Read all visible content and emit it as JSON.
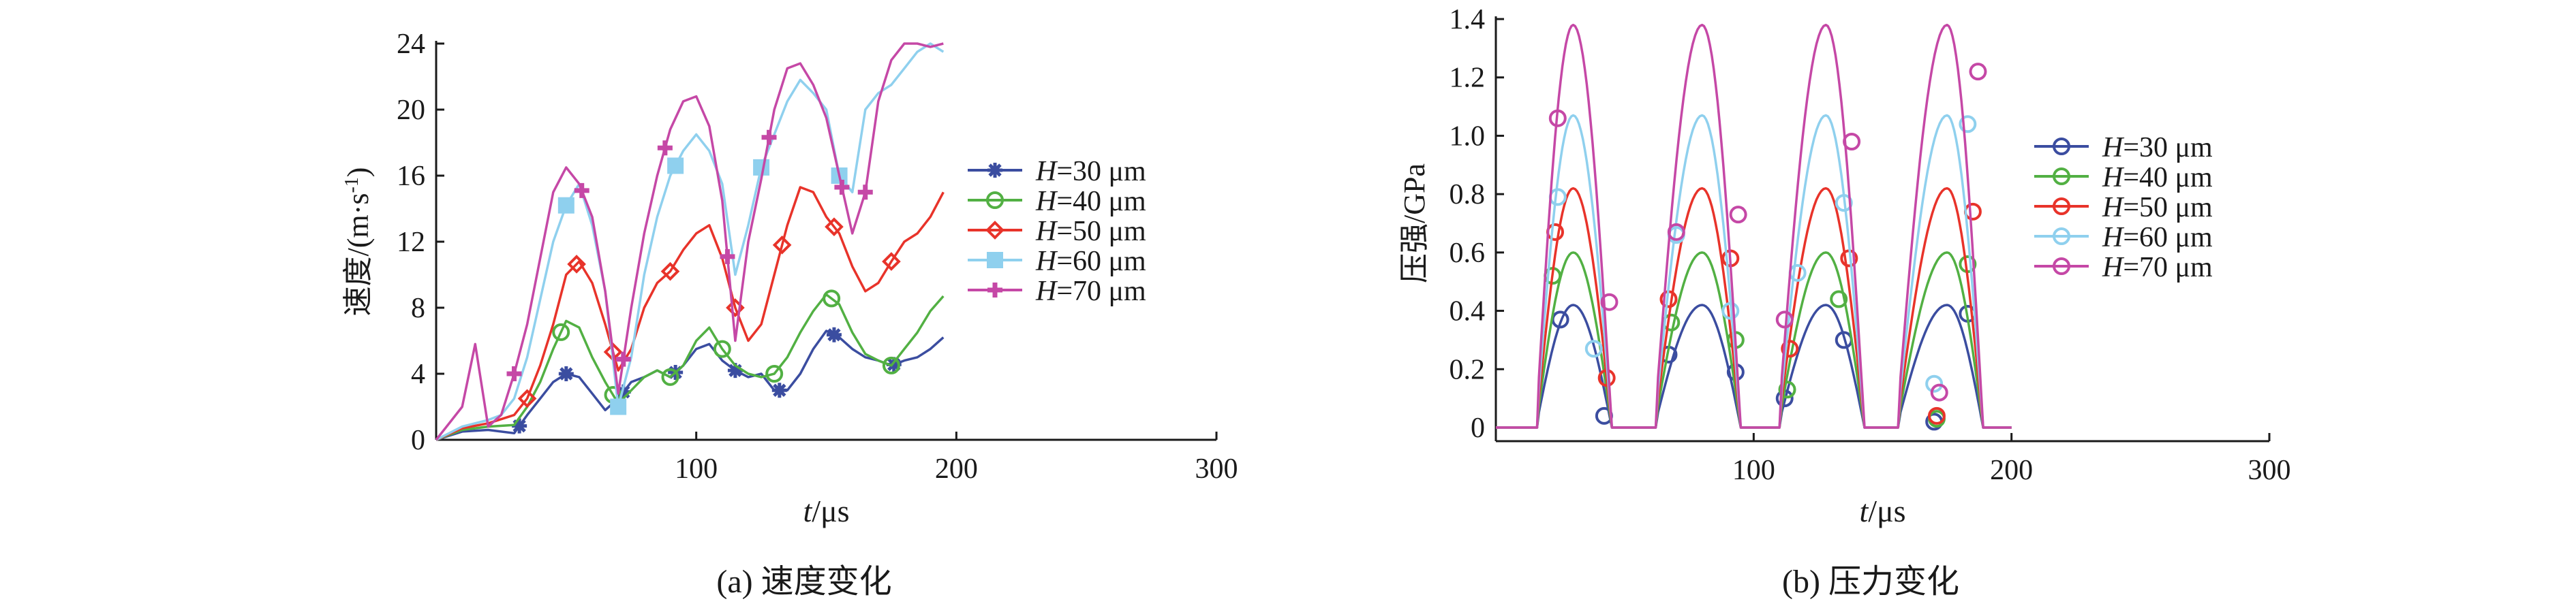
{
  "colors": {
    "H30": "#3b4da0",
    "H40": "#52b043",
    "H50": "#e8332a",
    "H60": "#8fd0ee",
    "H70": "#c548a6",
    "axis": "#1a1a1a"
  },
  "chart_data": [
    {
      "id": "a",
      "type": "line",
      "caption": "(a) 速度变化",
      "ylabel": "速度/(m·s",
      "ylabel_sup": "-1",
      "ylabel_tail": ")",
      "xlabel_var": "t",
      "xlabel_unit": "/μs",
      "xlim": [
        0,
        300
      ],
      "ylim": [
        0,
        24
      ],
      "xticks": [
        100,
        200,
        300
      ],
      "yticks": [
        0,
        4,
        8,
        12,
        16,
        20,
        24
      ],
      "series": [
        {
          "name_var": "H",
          "name_rest": "=30 μm",
          "color_key": "H30",
          "marker": "asterisk",
          "x": [
            0,
            10,
            20,
            30,
            35,
            40,
            45,
            50,
            55,
            60,
            65,
            70,
            75,
            80,
            85,
            90,
            95,
            100,
            105,
            110,
            115,
            120,
            125,
            130,
            135,
            140,
            145,
            150,
            155,
            160,
            165,
            170,
            175,
            180,
            185,
            190,
            195
          ],
          "y": [
            0,
            0.5,
            0.6,
            0.4,
            1.5,
            2.5,
            3.5,
            4.0,
            3.8,
            2.8,
            1.8,
            2.5,
            3.5,
            3.8,
            4.2,
            3.8,
            4.5,
            5.5,
            5.8,
            4.8,
            4.2,
            3.8,
            4.0,
            3.0,
            3.0,
            4.0,
            5.5,
            6.6,
            6.2,
            5.5,
            5.0,
            4.8,
            4.5,
            4.8,
            5.0,
            5.5,
            6.2
          ],
          "markers_x": [
            32,
            50,
            72,
            92,
            115,
            132,
            153,
            176
          ]
        },
        {
          "name_var": "H",
          "name_rest": "=40 μm",
          "color_key": "H40",
          "marker": "circle",
          "x": [
            0,
            10,
            20,
            30,
            35,
            40,
            45,
            50,
            55,
            60,
            65,
            70,
            75,
            80,
            85,
            90,
            95,
            100,
            105,
            110,
            115,
            120,
            125,
            130,
            135,
            140,
            145,
            150,
            155,
            160,
            165,
            170,
            175,
            180,
            185,
            190,
            195
          ],
          "y": [
            0,
            0.6,
            0.8,
            0.9,
            2.0,
            3.5,
            5.5,
            7.2,
            6.8,
            5.0,
            3.5,
            2.2,
            3.0,
            3.8,
            4.2,
            3.8,
            4.5,
            6.0,
            6.8,
            5.5,
            4.5,
            4.0,
            3.8,
            4.0,
            5.0,
            6.5,
            7.8,
            8.8,
            8.2,
            6.5,
            5.2,
            4.8,
            4.5,
            5.5,
            6.5,
            7.8,
            8.7
          ],
          "markers_x": [
            48,
            68,
            90,
            110,
            130,
            152,
            175
          ]
        },
        {
          "name_var": "H",
          "name_rest": "=50 μm",
          "color_key": "H50",
          "marker": "diamond",
          "x": [
            0,
            10,
            20,
            30,
            35,
            40,
            45,
            50,
            55,
            60,
            65,
            70,
            75,
            80,
            85,
            90,
            95,
            100,
            105,
            110,
            115,
            120,
            125,
            130,
            135,
            140,
            145,
            150,
            155,
            160,
            165,
            170,
            175,
            180,
            185,
            190,
            195
          ],
          "y": [
            0,
            0.7,
            1.0,
            1.5,
            2.5,
            4.5,
            7.0,
            10.0,
            10.8,
            9.5,
            7.0,
            4.2,
            5.5,
            8.0,
            9.5,
            10.2,
            11.5,
            12.5,
            13.0,
            11.0,
            8.0,
            6.0,
            7.0,
            10.0,
            13.0,
            15.3,
            15.0,
            13.5,
            12.5,
            10.5,
            9.0,
            9.5,
            10.8,
            12.0,
            12.5,
            13.5,
            15.0
          ],
          "markers_x": [
            35,
            54,
            68,
            90,
            115,
            133,
            153,
            175
          ]
        },
        {
          "name_var": "H",
          "name_rest": "=60 μm",
          "color_key": "H60",
          "marker": "square",
          "x": [
            0,
            10,
            20,
            25,
            30,
            35,
            40,
            45,
            50,
            55,
            60,
            65,
            70,
            75,
            80,
            85,
            90,
            95,
            100,
            105,
            110,
            115,
            120,
            125,
            130,
            135,
            140,
            145,
            150,
            155,
            160,
            165,
            170,
            175,
            180,
            185,
            190,
            195
          ],
          "y": [
            0,
            0.8,
            1.2,
            1.5,
            2.5,
            5.0,
            8.5,
            12.0,
            14.2,
            15.5,
            13.0,
            9.0,
            2.0,
            5.0,
            10.0,
            13.5,
            16.0,
            17.5,
            18.5,
            17.5,
            15.5,
            10.0,
            13.0,
            16.5,
            18.5,
            20.5,
            21.8,
            21.0,
            20.0,
            16.0,
            15.0,
            20.0,
            21.0,
            21.5,
            22.5,
            23.5,
            24.0,
            23.5
          ],
          "markers_x": [
            50,
            70,
            92,
            125,
            155
          ]
        },
        {
          "name_var": "H",
          "name_rest": "=70 μm",
          "color_key": "H70",
          "marker": "plus",
          "x": [
            0,
            5,
            10,
            15,
            20,
            25,
            30,
            35,
            40,
            45,
            50,
            55,
            60,
            65,
            70,
            75,
            80,
            85,
            90,
            95,
            100,
            105,
            110,
            115,
            120,
            125,
            130,
            135,
            140,
            145,
            150,
            155,
            160,
            165,
            170,
            175,
            180,
            185,
            190,
            195
          ],
          "y": [
            0,
            1.0,
            2.0,
            5.8,
            0.8,
            1.5,
            4.0,
            7.0,
            11.0,
            15.0,
            16.5,
            15.5,
            13.5,
            9.0,
            2.8,
            8.0,
            12.5,
            16.0,
            18.8,
            20.5,
            20.8,
            19.0,
            14.5,
            6.0,
            12.0,
            15.8,
            20.0,
            22.5,
            22.8,
            21.5,
            19.5,
            16.0,
            12.5,
            15.0,
            20.5,
            23.0,
            24.0,
            24.0,
            23.8,
            24.0
          ],
          "markers_x": [
            30,
            56,
            72,
            88,
            112,
            128,
            156,
            165
          ]
        }
      ]
    },
    {
      "id": "b",
      "type": "line",
      "caption": "(b) 压力变化",
      "ylabel": "压强/GPa",
      "xlabel_var": "t",
      "xlabel_unit": "/μs",
      "xlim": [
        0,
        300
      ],
      "ylim": [
        0,
        1.4
      ],
      "xticks": [
        100,
        200,
        300
      ],
      "yticks": [
        0,
        0.2,
        0.4,
        0.6,
        0.8,
        1.0,
        1.2,
        1.4
      ],
      "yticklabels": [
        "0",
        "0.2",
        "0.4",
        "0.6",
        "0.8",
        "1.0",
        "1.2",
        "1.4"
      ],
      "pulses": [
        [
          16,
          45,
          30
        ],
        [
          62,
          95,
          80
        ],
        [
          110,
          143,
          128
        ],
        [
          156,
          189,
          175
        ]
      ],
      "series": [
        {
          "name_var": "H",
          "name_rest": "=30 μm",
          "color_key": "H30",
          "marker": "circle",
          "peak": 0.42,
          "markers": [
            [
              25,
              0.37
            ],
            [
              42,
              0.04
            ],
            [
              67,
              0.25
            ],
            [
              93,
              0.19
            ],
            [
              112,
              0.1
            ],
            [
              135,
              0.3
            ],
            [
              170,
              0.02
            ],
            [
              183,
              0.39
            ]
          ]
        },
        {
          "name_var": "H",
          "name_rest": "=40 μm",
          "color_key": "H40",
          "marker": "circle",
          "peak": 0.6,
          "markers": [
            [
              22,
              0.52
            ],
            [
              68,
              0.36
            ],
            [
              93,
              0.3
            ],
            [
              113,
              0.13
            ],
            [
              133,
              0.44
            ],
            [
              171,
              0.03
            ],
            [
              183,
              0.56
            ]
          ]
        },
        {
          "name_var": "H",
          "name_rest": "=50 μm",
          "color_key": "H50",
          "marker": "circle",
          "peak": 0.82,
          "markers": [
            [
              23,
              0.67
            ],
            [
              43,
              0.17
            ],
            [
              67,
              0.44
            ],
            [
              91,
              0.58
            ],
            [
              114,
              0.27
            ],
            [
              137,
              0.58
            ],
            [
              171,
              0.04
            ],
            [
              185,
              0.74
            ]
          ]
        },
        {
          "name_var": "H",
          "name_rest": "=60 μm",
          "color_key": "H60",
          "marker": "circle",
          "peak": 1.07,
          "markers": [
            [
              24,
              0.79
            ],
            [
              38,
              0.27
            ],
            [
              70,
              0.66
            ],
            [
              91,
              0.4
            ],
            [
              117,
              0.53
            ],
            [
              135,
              0.77
            ],
            [
              170,
              0.15
            ],
            [
              183,
              1.04
            ]
          ]
        },
        {
          "name_var": "H",
          "name_rest": "=70 μm",
          "color_key": "H70",
          "marker": "circle",
          "peak": 1.38,
          "markers": [
            [
              24,
              1.06
            ],
            [
              44,
              0.43
            ],
            [
              70,
              0.67
            ],
            [
              94,
              0.73
            ],
            [
              112,
              0.37
            ],
            [
              138,
              0.98
            ],
            [
              172,
              0.12
            ],
            [
              187,
              1.22
            ]
          ]
        }
      ]
    }
  ]
}
